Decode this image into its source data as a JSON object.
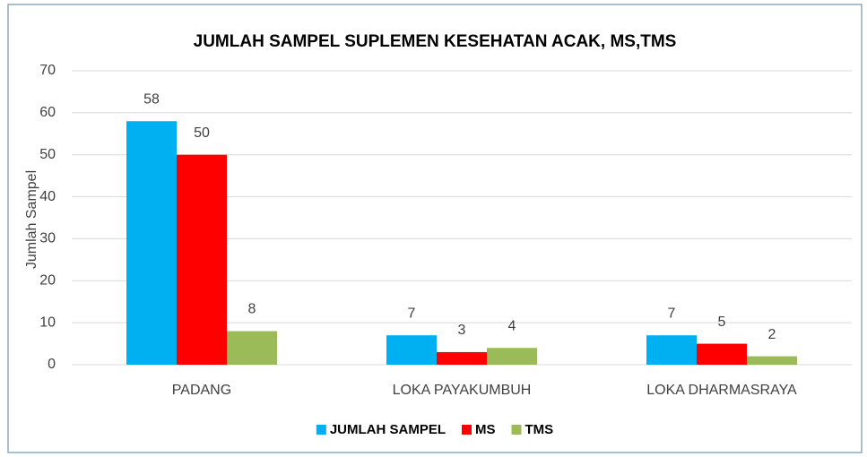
{
  "chart_data": {
    "type": "bar",
    "title": "JUMLAH SAMPEL SUPLEMEN KESEHATAN  ACAK, MS,TMS",
    "y_label": "Jumlah Sampel",
    "categories": [
      "PADANG",
      "LOKA PAYAKUMBUH",
      "LOKA DHARMASRAYA"
    ],
    "series": [
      {
        "name": "JUMLAH SAMPEL",
        "color": "#00b0f0",
        "values": [
          58,
          7,
          7
        ]
      },
      {
        "name": "MS",
        "color": "#ff0000",
        "values": [
          50,
          3,
          5
        ]
      },
      {
        "name": "TMS",
        "color": "#9bbb59",
        "values": [
          8,
          4,
          2
        ]
      }
    ],
    "ylim": [
      0,
      70
    ],
    "yticks": [
      0,
      10,
      20,
      30,
      40,
      50,
      60,
      70
    ],
    "grid": true,
    "legend": "bottom"
  }
}
